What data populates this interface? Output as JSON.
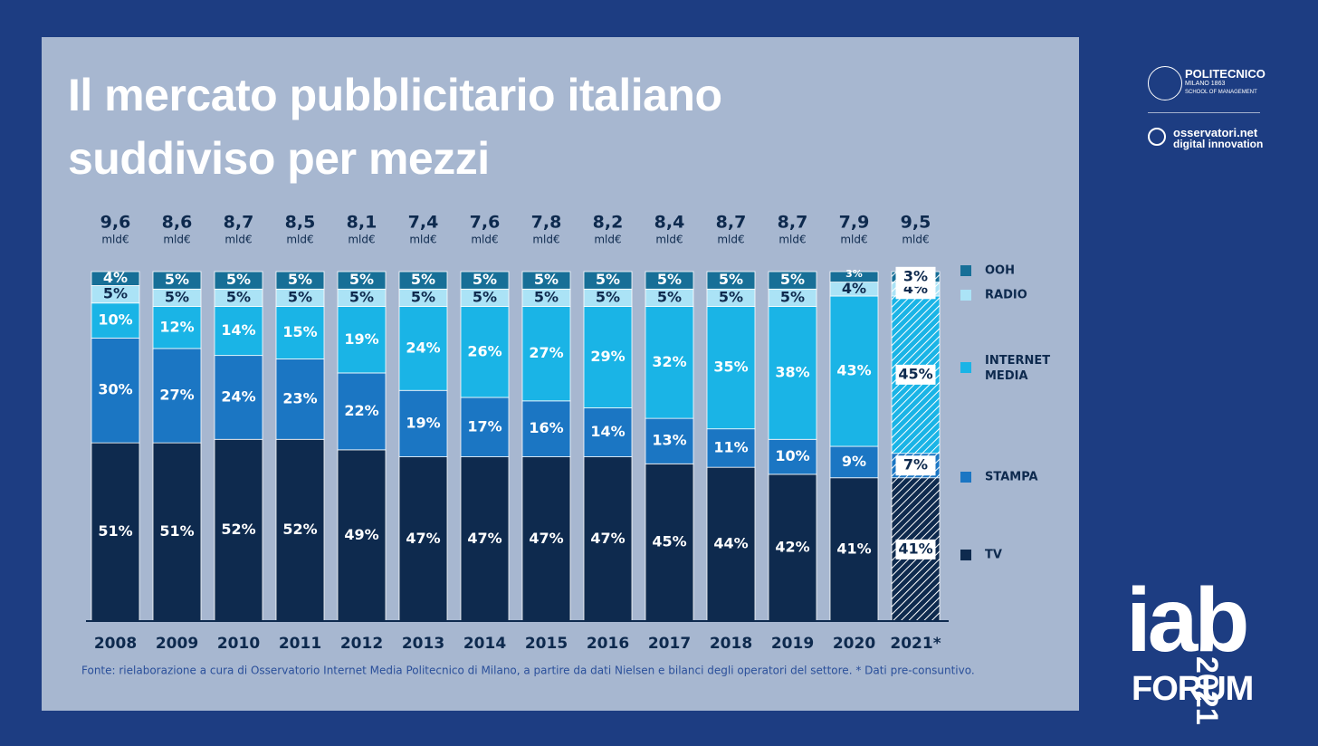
{
  "chart_data": {
    "type": "stacked_bar",
    "title_lines": [
      "Il mercato pubblicitario italiano",
      "suddiviso per mezzi"
    ],
    "categories": [
      "2008",
      "2009",
      "2010",
      "2011",
      "2012",
      "2013",
      "2014",
      "2015",
      "2016",
      "2017",
      "2018",
      "2019",
      "2020",
      "2021*"
    ],
    "ylim": [
      0,
      100
    ],
    "hatched_last": true,
    "totals": {
      "values": [
        9.6,
        8.6,
        8.7,
        8.5,
        8.1,
        7.4,
        7.6,
        7.8,
        8.2,
        8.4,
        8.7,
        8.7,
        7.9,
        9.5
      ],
      "value_labels": [
        "9,6",
        "8,6",
        "8,7",
        "8,5",
        "8,1",
        "7,4",
        "7,6",
        "7,8",
        "8,2",
        "8,4",
        "8,7",
        "8,7",
        "7,9",
        "9,5"
      ],
      "unit": "mld€"
    },
    "series": [
      {
        "name": "TV",
        "color": "#0e2a4e",
        "values": [
          51,
          51,
          52,
          52,
          49,
          47,
          47,
          47,
          47,
          45,
          44,
          42,
          41,
          41
        ],
        "value_labels": [
          "51%",
          "51%",
          "52%",
          "52%",
          "49%",
          "47%",
          "47%",
          "47%",
          "47%",
          "45%",
          "44%",
          "42%",
          "41%",
          "41%"
        ]
      },
      {
        "name": "STAMPA",
        "color": "#1b76c3",
        "values": [
          30,
          27,
          24,
          23,
          22,
          19,
          17,
          16,
          14,
          13,
          11,
          10,
          9,
          7
        ],
        "value_labels": [
          "30%",
          "27%",
          "24%",
          "23%",
          "22%",
          "19%",
          "17%",
          "16%",
          "14%",
          "13%",
          "11%",
          "10%",
          "9%",
          "7%"
        ]
      },
      {
        "name": "INTERNET MEDIA",
        "color": "#1ab4e6",
        "values": [
          10,
          12,
          14,
          15,
          19,
          24,
          26,
          27,
          29,
          32,
          35,
          38,
          43,
          45
        ],
        "value_labels": [
          "10%",
          "12%",
          "14%",
          "15%",
          "19%",
          "24%",
          "26%",
          "27%",
          "29%",
          "32%",
          "35%",
          "38%",
          "43%",
          "45%"
        ]
      },
      {
        "name": "RADIO",
        "color": "#abe3f6",
        "values": [
          5,
          5,
          5,
          5,
          5,
          5,
          5,
          5,
          5,
          5,
          5,
          5,
          4,
          4
        ],
        "value_labels": [
          "5%",
          "5%",
          "5%",
          "5%",
          "5%",
          "5%",
          "5%",
          "5%",
          "5%",
          "5%",
          "5%",
          "5%",
          "4%",
          "4%"
        ]
      },
      {
        "name": "OOH",
        "color": "#176f97",
        "values": [
          4,
          5,
          5,
          5,
          5,
          5,
          5,
          5,
          5,
          5,
          5,
          5,
          3,
          3
        ],
        "value_labels": [
          "4%",
          "5%",
          "5%",
          "5%",
          "5%",
          "5%",
          "5%",
          "5%",
          "5%",
          "5%",
          "5%",
          "5%",
          "3%",
          "3%"
        ]
      }
    ],
    "source": "Fonte: rielaborazione a cura di Osservatorio Internet Media Politecnico di Milano, a partire da dati Nielsen e bilanci degli operatori del settore. * Dati pre-consuntivo."
  },
  "logos": {
    "politecnico": "POLITECNICO",
    "milano": "MILANO 1863",
    "school": "SCHOOL OF MANAGEMENT",
    "osservatori": "osservatori.net",
    "digital": "digital innovation",
    "iab": "iab",
    "forum": "FORUM",
    "year": "2021"
  }
}
